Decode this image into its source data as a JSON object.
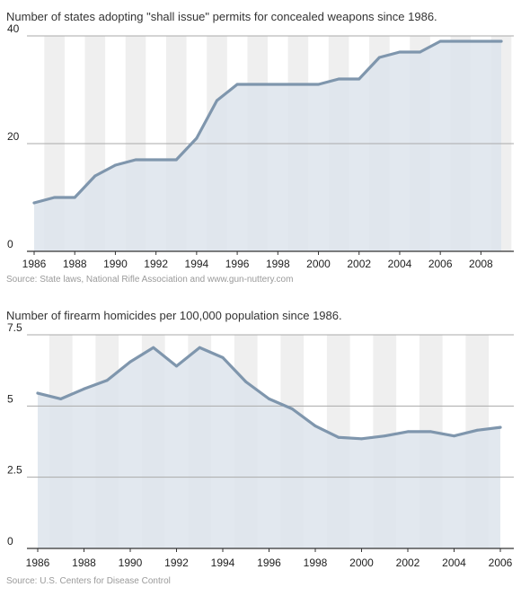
{
  "chart_data": [
    {
      "type": "area",
      "title": "Number of states adopting \"shall issue\" permits for concealed weapons since 1986.",
      "source": "Source: State laws, National Rifle Association and www.gun-nuttery.com",
      "x": [
        1986,
        1987,
        1988,
        1989,
        1990,
        1991,
        1992,
        1993,
        1994,
        1995,
        1996,
        1997,
        1998,
        1999,
        2000,
        2001,
        2002,
        2003,
        2004,
        2005,
        2006,
        2007,
        2008,
        2009
      ],
      "values": [
        9,
        10,
        10,
        14,
        16,
        17,
        17,
        17,
        21,
        28,
        31,
        31,
        31,
        31,
        31,
        32,
        32,
        36,
        37,
        37,
        39,
        39,
        39,
        39
      ],
      "xticks": [
        "1986",
        "1988",
        "1990",
        "1992",
        "1994",
        "1996",
        "1998",
        "2000",
        "2002",
        "2004",
        "2006",
        "2008"
      ],
      "xtick_values": [
        1986,
        1988,
        1990,
        1992,
        1994,
        1996,
        1998,
        2000,
        2002,
        2004,
        2006,
        2008
      ],
      "yticks": [
        "0",
        "20",
        "40"
      ],
      "ytick_values": [
        0,
        20,
        40
      ],
      "ylim": [
        0,
        40
      ],
      "xlim": [
        1986,
        2009
      ],
      "grid": true,
      "line_color": "#7f96ad",
      "fill_color": "#dde4ec",
      "stripe_color": "#efefef"
    },
    {
      "type": "area",
      "title": "Number of firearm homicides per 100,000 population since 1986.",
      "source": "Source: U.S. Centers for Disease Control",
      "x": [
        1986,
        1987,
        1988,
        1989,
        1990,
        1991,
        1992,
        1993,
        1994,
        1995,
        1996,
        1997,
        1998,
        1999,
        2000,
        2001,
        2002,
        2003,
        2004,
        2005,
        2006
      ],
      "values": [
        5.45,
        5.25,
        5.6,
        5.9,
        6.55,
        7.05,
        6.4,
        7.05,
        6.7,
        5.85,
        5.25,
        4.9,
        4.3,
        3.9,
        3.85,
        3.95,
        4.1,
        4.1,
        3.95,
        4.15,
        4.25
      ],
      "xticks": [
        "1986",
        "1988",
        "1990",
        "1992",
        "1994",
        "1996",
        "1998",
        "2000",
        "2002",
        "2004",
        "2006"
      ],
      "xtick_values": [
        1986,
        1988,
        1990,
        1992,
        1994,
        1996,
        1998,
        2000,
        2002,
        2004,
        2006
      ],
      "yticks": [
        "0",
        "2.5",
        "5",
        "7.5"
      ],
      "ytick_values": [
        0,
        2.5,
        5,
        7.5
      ],
      "ylim": [
        0,
        7.5
      ],
      "xlim": [
        1986,
        2006
      ],
      "grid": true,
      "line_color": "#7f96ad",
      "fill_color": "#dde4ec",
      "stripe_color": "#efefef"
    }
  ]
}
